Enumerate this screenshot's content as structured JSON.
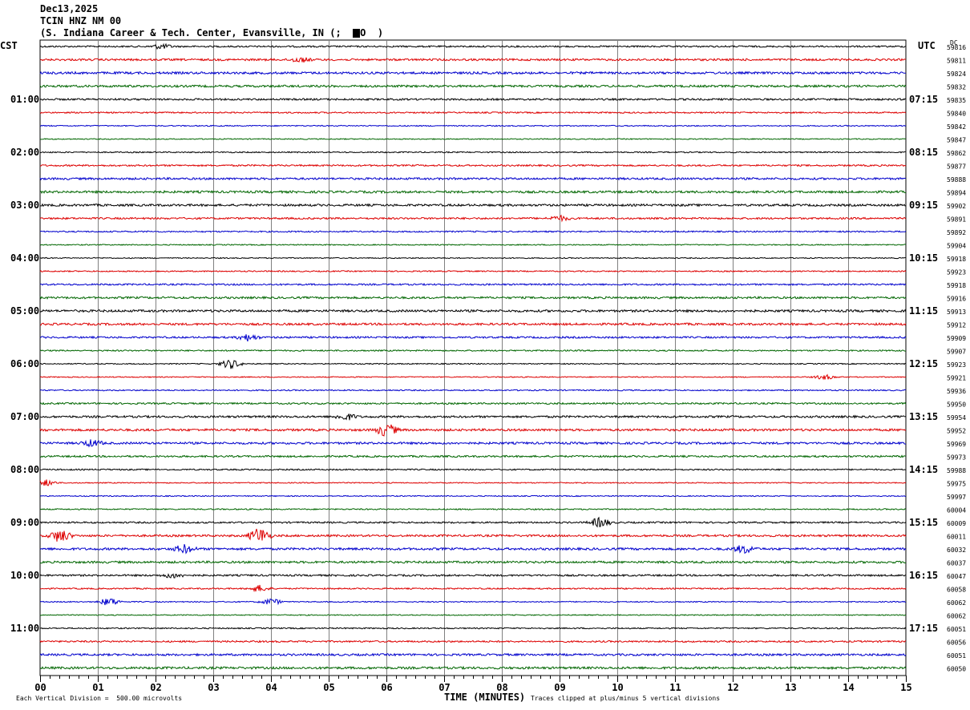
{
  "header": {
    "date": "Dec13,2025",
    "channel": "TCIN HNZ NM 00",
    "location": "(S. Indiana Career & Tech. Center, Evansville, IN (;  ",
    "location_end": "O  )"
  },
  "left_tz": "CST",
  "right_tz": "UTC",
  "dc_header": "DC",
  "footer": {
    "x_title": "TIME (MINUTES)",
    "scale_note": "Each Vertical Division =  500.00 microvolts",
    "clip_note": "Traces clipped at plus/minus 5 vertical divisions"
  },
  "colors": {
    "trace_cycle": [
      "#000000",
      "#dd0000",
      "#0000cc",
      "#006600"
    ],
    "grid": "#808080"
  },
  "chart_data": {
    "type": "line",
    "title": "TCIN HNZ NM 00",
    "xlabel": "TIME (MINUTES)",
    "ylabel": "",
    "xlim": [
      0,
      15
    ],
    "x_tick_labels": [
      "00",
      "01",
      "02",
      "03",
      "04",
      "05",
      "06",
      "07",
      "08",
      "09",
      "10",
      "11",
      "12",
      "13",
      "14",
      "15"
    ],
    "left_time_labels": [
      "01:00",
      "02:00",
      "03:00",
      "04:00",
      "05:00",
      "06:00",
      "07:00",
      "08:00",
      "09:00",
      "10:00",
      "11:00"
    ],
    "right_time_labels": [
      "07:15",
      "08:15",
      "09:15",
      "10:15",
      "11:15",
      "12:15",
      "13:15",
      "14:15",
      "15:15",
      "16:15",
      "17:15"
    ],
    "trace_count": 48,
    "dc_offsets": [
      "59816",
      "59811",
      "59824",
      "59832",
      "59835",
      "59840",
      "59842",
      "59847",
      "59862",
      "59877",
      "59888",
      "59894",
      "59902",
      "59891",
      "59892",
      "59904",
      "59918",
      "59923",
      "59918",
      "59916",
      "59913",
      "59912",
      "59909",
      "59907",
      "59923",
      "59921",
      "59936",
      "59950",
      "59954",
      "59952",
      "59969",
      "59973",
      "59988",
      "59975",
      "59997",
      "60004",
      "60009",
      "60011",
      "60032",
      "60037",
      "60047",
      "60058",
      "60062",
      "60062",
      "60051",
      "60056",
      "60051",
      "60050"
    ],
    "events": [
      {
        "trace": 0,
        "minute": 2.1,
        "amp": 3
      },
      {
        "trace": 1,
        "minute": 4.5,
        "amp": 3
      },
      {
        "trace": 13,
        "minute": 9.0,
        "amp": 3
      },
      {
        "trace": 25,
        "minute": 13.6,
        "amp": 3
      },
      {
        "trace": 22,
        "minute": 3.6,
        "amp": 4
      },
      {
        "trace": 24,
        "minute": 3.3,
        "amp": 6
      },
      {
        "trace": 28,
        "minute": 5.3,
        "amp": 4
      },
      {
        "trace": 29,
        "minute": 6.0,
        "amp": 8
      },
      {
        "trace": 30,
        "minute": 0.9,
        "amp": 4
      },
      {
        "trace": 33,
        "minute": 0.1,
        "amp": 4
      },
      {
        "trace": 36,
        "minute": 9.7,
        "amp": 6
      },
      {
        "trace": 37,
        "minute": 0.35,
        "amp": 8
      },
      {
        "trace": 37,
        "minute": 3.8,
        "amp": 10
      },
      {
        "trace": 38,
        "minute": 2.5,
        "amp": 5
      },
      {
        "trace": 38,
        "minute": 12.2,
        "amp": 5
      },
      {
        "trace": 40,
        "minute": 2.3,
        "amp": 3
      },
      {
        "trace": 41,
        "minute": 3.8,
        "amp": 4
      },
      {
        "trace": 42,
        "minute": 1.2,
        "amp": 5
      },
      {
        "trace": 42,
        "minute": 4.0,
        "amp": 4
      }
    ]
  }
}
